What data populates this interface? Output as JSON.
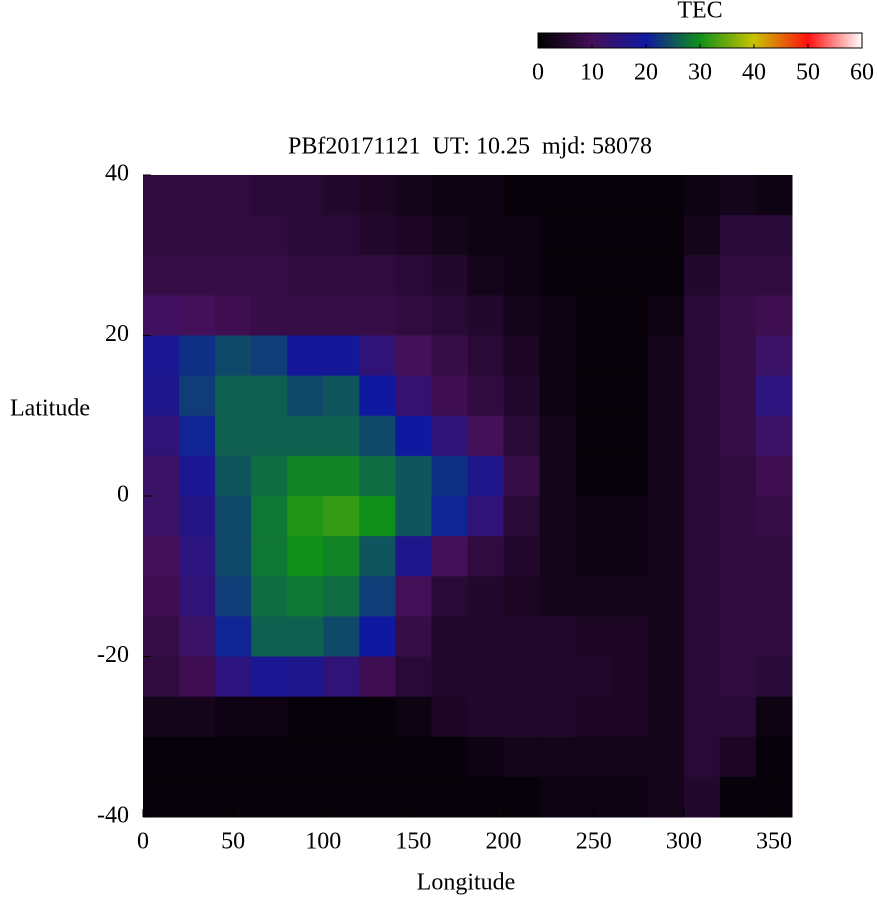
{
  "chart_data": {
    "type": "heatmap",
    "title": "PBf20171121  UT: 10.25  mjd: 58078",
    "x_label": "Longitude",
    "y_label": "Latitude",
    "xlim": [
      0,
      360
    ],
    "ylim": [
      -40,
      40
    ],
    "xticks": [
      0,
      50,
      100,
      150,
      200,
      250,
      300,
      350
    ],
    "yticks": [
      -40,
      -20,
      0,
      20,
      40
    ],
    "x": [
      10,
      30,
      50,
      70,
      90,
      110,
      130,
      150,
      170,
      190,
      210,
      230,
      250,
      270,
      290,
      310,
      330,
      350
    ],
    "y": [
      37.5,
      32.5,
      27.5,
      22.5,
      17.5,
      12.5,
      7.5,
      2.5,
      -2.5,
      -7.5,
      -12.5,
      -17.5,
      -22.5,
      -27.5,
      -32.5,
      -37.5
    ],
    "cell_width": 20,
    "cell_height": 5,
    "values": [
      [
        7,
        7,
        7,
        6,
        6,
        5,
        4,
        3,
        2,
        2,
        1,
        1,
        1,
        1,
        1,
        2,
        3,
        2
      ],
      [
        7,
        7,
        7,
        7,
        6,
        6,
        5,
        4,
        3,
        2,
        2,
        1,
        1,
        1,
        1,
        3,
        6,
        6
      ],
      [
        8,
        8,
        8,
        8,
        7,
        7,
        7,
        6,
        5,
        3,
        2,
        1,
        1,
        1,
        1,
        5,
        7,
        7
      ],
      [
        11,
        10,
        9,
        8,
        8,
        8,
        8,
        7,
        6,
        5,
        3,
        2,
        1,
        1,
        2,
        6,
        8,
        9
      ],
      [
        18,
        22,
        24,
        23,
        19,
        19,
        14,
        10,
        8,
        6,
        4,
        2,
        1,
        1,
        3,
        6,
        8,
        12
      ],
      [
        17,
        23,
        26,
        26,
        24,
        25,
        20,
        13,
        9,
        7,
        5,
        2,
        1,
        1,
        3,
        6,
        8,
        15
      ],
      [
        14,
        21,
        26,
        26,
        26,
        26,
        24,
        20,
        14,
        10,
        6,
        3,
        1,
        1,
        3,
        6,
        8,
        12
      ],
      [
        12,
        18,
        25,
        27,
        29,
        29,
        27,
        25,
        22,
        17,
        8,
        3,
        1,
        1,
        3,
        6,
        7,
        9
      ],
      [
        12,
        16,
        24,
        28,
        31,
        32,
        30,
        25,
        21,
        14,
        6,
        3,
        2,
        2,
        3,
        6,
        7,
        8
      ],
      [
        10,
        15,
        24,
        28,
        30,
        29,
        25,
        17,
        10,
        7,
        5,
        3,
        2,
        2,
        3,
        6,
        7,
        7
      ],
      [
        9,
        14,
        23,
        27,
        28,
        27,
        23,
        10,
        6,
        5,
        4,
        3,
        3,
        3,
        3,
        6,
        7,
        7
      ],
      [
        8,
        12,
        21,
        26,
        26,
        24,
        20,
        8,
        5,
        5,
        5,
        5,
        4,
        4,
        3,
        6,
        7,
        7
      ],
      [
        7,
        9,
        15,
        18,
        17,
        14,
        9,
        6,
        5,
        5,
        5,
        5,
        5,
        4,
        3,
        6,
        7,
        6
      ],
      [
        3,
        3,
        2,
        2,
        1,
        1,
        1,
        2,
        4,
        5,
        5,
        5,
        4,
        4,
        3,
        6,
        6,
        2
      ],
      [
        1,
        1,
        1,
        1,
        1,
        1,
        1,
        1,
        1,
        2,
        3,
        3,
        3,
        3,
        3,
        6,
        4,
        1
      ],
      [
        1,
        1,
        1,
        1,
        1,
        1,
        1,
        1,
        1,
        1,
        1,
        2,
        2,
        2,
        3,
        5,
        1,
        1
      ]
    ],
    "colormap": [
      "#000000",
      "#45105a",
      "#1018a0",
      "#10901a",
      "#c8c400",
      "#ff1010",
      "#ffffff"
    ],
    "colorbar": {
      "label": "TEC",
      "lim": [
        0,
        60
      ],
      "ticks": [
        0,
        10,
        20,
        30,
        40,
        50,
        60
      ]
    }
  }
}
